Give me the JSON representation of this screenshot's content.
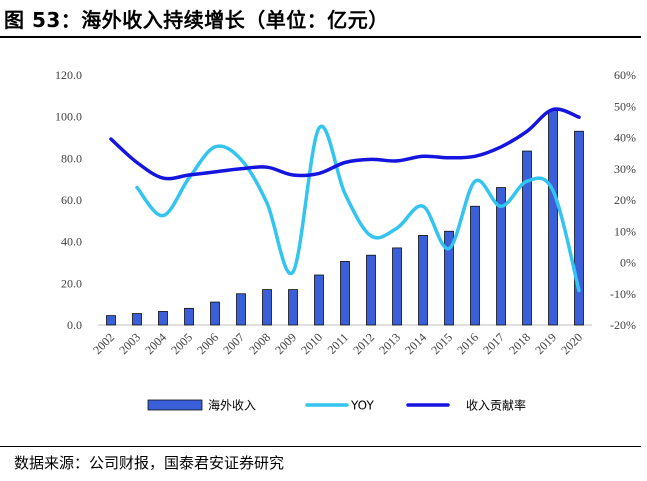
{
  "figure": {
    "title": "图 53：海外收入持续增长（单位：亿元）",
    "source": "数据来源：公司财报，国泰君安证券研究"
  },
  "chart_data": {
    "type": "bar+line",
    "categories": [
      "2002",
      "2003",
      "2004",
      "2005",
      "2006",
      "2007",
      "2008",
      "2009",
      "2010",
      "2011",
      "2012",
      "2013",
      "2014",
      "2015",
      "2016",
      "2017",
      "2018",
      "2019",
      "2020"
    ],
    "left_axis": {
      "range": [
        0,
        120
      ],
      "ticks": [
        "0.0",
        "20.0",
        "40.0",
        "60.0",
        "80.0",
        "100.0",
        "120.0"
      ]
    },
    "right_axis": {
      "range": [
        -20,
        60
      ],
      "ticks": [
        "-20%",
        "-10%",
        "0%",
        "10%",
        "20%",
        "30%",
        "40%",
        "50%",
        "60%"
      ]
    },
    "series": [
      {
        "name": "海外收入",
        "kind": "bar",
        "axis": "left",
        "color": "#3a5fd8",
        "values": [
          4.5,
          5.5,
          6.5,
          8.0,
          11.0,
          15.0,
          17.0,
          17.0,
          24.0,
          30.5,
          33.5,
          37.0,
          43.0,
          45.0,
          57.0,
          66.0,
          83.5,
          103.0,
          93.0
        ]
      },
      {
        "name": "YOY",
        "kind": "line",
        "axis": "right",
        "color": "#33c4f0",
        "values": [
          null,
          24.0,
          15.0,
          27.0,
          37.0,
          33.0,
          19.0,
          -3.0,
          43.0,
          22.0,
          8.5,
          11.0,
          18.0,
          4.5,
          26.0,
          18.0,
          26.0,
          23.0,
          -9.0
        ]
      },
      {
        "name": "收入贡献率",
        "kind": "line",
        "axis": "right",
        "color": "#1515e0",
        "values": [
          39.5,
          32.0,
          27.0,
          28.0,
          29.0,
          30.0,
          30.5,
          28.0,
          28.5,
          32.0,
          33.0,
          32.5,
          34.0,
          33.5,
          34.0,
          37.0,
          42.0,
          49.0,
          46.5
        ]
      }
    ],
    "legend": {
      "position": "bottom",
      "labels": [
        "海外收入",
        "YOY",
        "收入贡献率"
      ]
    }
  }
}
